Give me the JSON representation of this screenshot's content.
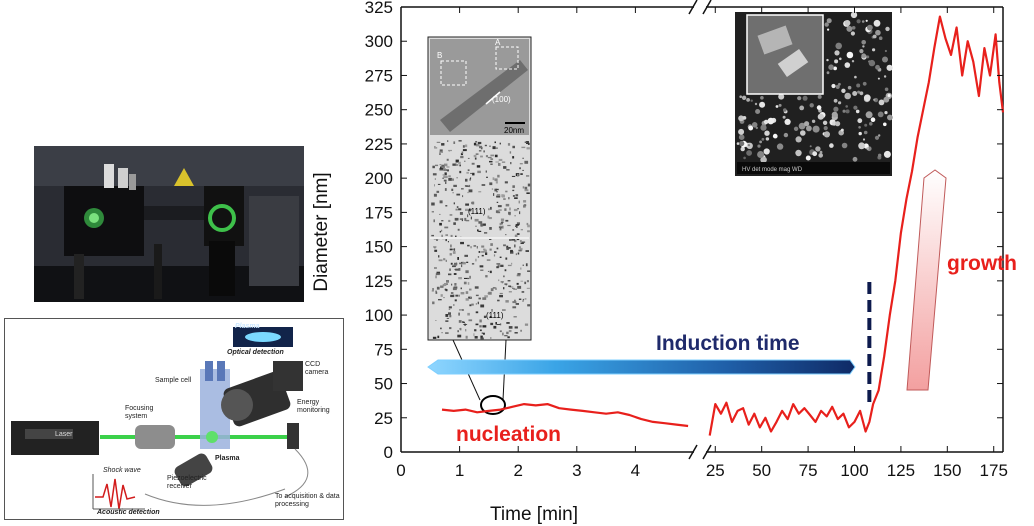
{
  "chart_data": {
    "type": "line",
    "xlabel": "Time [min]",
    "ylabel": "Diameter [nm]",
    "ylim": [
      0,
      325
    ],
    "y_ticks": [
      0,
      25,
      50,
      75,
      100,
      125,
      150,
      175,
      200,
      225,
      250,
      275,
      300,
      325
    ],
    "x_segments": [
      {
        "range": [
          0,
          5
        ],
        "ticks": [
          0,
          1,
          2,
          3,
          4
        ]
      },
      {
        "range": [
          20,
          180
        ],
        "ticks": [
          25,
          50,
          75,
          100,
          125,
          150,
          175
        ]
      }
    ],
    "axis_break_marker": "//",
    "series": [
      {
        "color": "#e8201c",
        "points": [
          [
            0.7,
            31
          ],
          [
            0.9,
            30
          ],
          [
            1.1,
            31
          ],
          [
            1.3,
            29
          ],
          [
            1.5,
            30
          ],
          [
            1.7,
            31
          ],
          [
            1.9,
            33
          ],
          [
            2.1,
            35
          ],
          [
            2.3,
            34
          ],
          [
            2.5,
            35
          ],
          [
            2.7,
            32
          ],
          [
            2.9,
            31
          ],
          [
            3.1,
            30
          ],
          [
            3.3,
            29
          ],
          [
            3.5,
            28
          ],
          [
            3.7,
            29
          ],
          [
            3.9,
            27
          ],
          [
            4.1,
            24
          ],
          [
            4.3,
            22
          ],
          [
            4.5,
            21
          ],
          [
            4.7,
            20
          ],
          [
            4.9,
            19
          ],
          [
            22,
            12
          ],
          [
            25,
            35
          ],
          [
            28,
            28
          ],
          [
            31,
            36
          ],
          [
            34,
            22
          ],
          [
            37,
            30
          ],
          [
            40,
            32
          ],
          [
            43,
            20
          ],
          [
            46,
            28
          ],
          [
            49,
            18
          ],
          [
            52,
            25
          ],
          [
            55,
            15
          ],
          [
            58,
            22
          ],
          [
            61,
            30
          ],
          [
            64,
            24
          ],
          [
            67,
            35
          ],
          [
            70,
            28
          ],
          [
            73,
            32
          ],
          [
            76,
            27
          ],
          [
            79,
            22
          ],
          [
            82,
            30
          ],
          [
            85,
            26
          ],
          [
            88,
            33
          ],
          [
            91,
            24
          ],
          [
            94,
            28
          ],
          [
            97,
            18
          ],
          [
            100,
            22
          ],
          [
            103,
            30
          ],
          [
            106,
            15
          ],
          [
            108,
            22
          ],
          [
            110,
            35
          ],
          [
            113,
            45
          ],
          [
            116,
            70
          ],
          [
            119,
            100
          ],
          [
            122,
            125
          ],
          [
            125,
            160
          ],
          [
            128,
            185
          ],
          [
            131,
            205
          ],
          [
            134,
            230
          ],
          [
            137,
            250
          ],
          [
            140,
            270
          ],
          [
            143,
            295
          ],
          [
            146,
            318
          ],
          [
            149,
            302
          ],
          [
            152,
            290
          ],
          [
            155,
            310
          ],
          [
            158,
            275
          ],
          [
            161,
            300
          ],
          [
            164,
            285
          ],
          [
            167,
            260
          ],
          [
            170,
            295
          ],
          [
            173,
            275
          ],
          [
            176,
            305
          ],
          [
            178,
            270
          ],
          [
            180,
            248
          ]
        ]
      }
    ],
    "annotations": [
      {
        "text": "nucleation",
        "color": "#e8201c"
      },
      {
        "text": "growth",
        "color": "#e8201c"
      },
      {
        "text": "Induction time",
        "color": "#1f2a6b"
      }
    ],
    "insets": {
      "tem_labels": [
        "A",
        "B",
        "(100)",
        "20nm",
        "(111)",
        "(111)"
      ],
      "sem_caption": "HV  det  mode  mag  WD"
    },
    "induction_marker_x": 108
  },
  "left_panels": {
    "schematic_labels": {
      "laser": "Laser",
      "focusing_system": "Focusing system",
      "sample_cell": "Sample cell",
      "plasma_top": "Plasma",
      "optical_detection": "Optical detection",
      "ccd_camera": "CCD camera",
      "energy_monitoring": "Energy monitoring",
      "plasma": "Plasma",
      "piezo_receiver": "Piezoelectric receiver",
      "shock_wave": "Shock wave",
      "acoustic_detection": "Acoustic detection",
      "to_acquisition": "To acquisition & data processing"
    }
  }
}
